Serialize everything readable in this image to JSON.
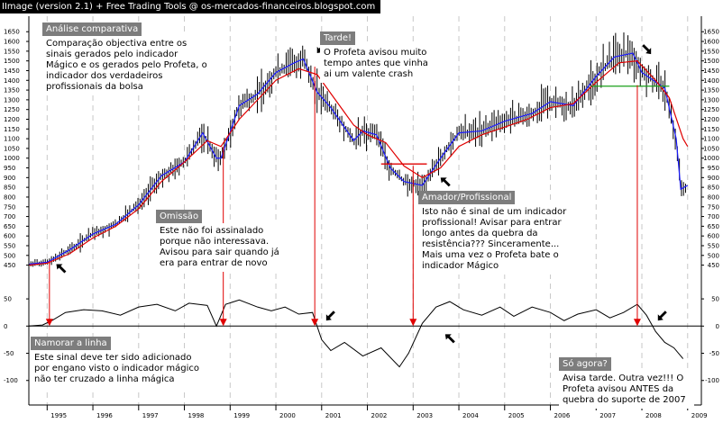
{
  "window_title": "IImage (version 2.1) + Free Trading Tools @ os-mercados-financeiros.blogspot.com",
  "chart_data": [
    {
      "type": "line",
      "panel": "price",
      "y_ticks": [
        450,
        500,
        550,
        600,
        650,
        700,
        750,
        800,
        850,
        900,
        950,
        1000,
        1050,
        1100,
        1150,
        1200,
        1250,
        1300,
        1350,
        1400,
        1450,
        1500,
        1550,
        1600,
        1650
      ],
      "ylim": [
        425,
        1665
      ],
      "x_labels": [
        "1995",
        "1996",
        "1997",
        "1998",
        "1999",
        "2000",
        "2001",
        "2002",
        "2003",
        "2004",
        "2005",
        "2006",
        "2007",
        "2008",
        "2009"
      ],
      "xlim": [
        1994.6,
        2009.3
      ],
      "grid": true,
      "series": [
        {
          "color": "#000000",
          "style": "bars",
          "x": [
            1994.6,
            1995.0,
            1995.5,
            1996.0,
            1996.5,
            1997.0,
            1997.5,
            1998.0,
            1998.4,
            1998.7,
            1998.8,
            1999.2,
            1999.6,
            2000.0,
            2000.4,
            2000.6,
            2000.9,
            2001.2,
            2001.7,
            2001.9,
            2002.2,
            2002.5,
            2002.8,
            2003.2,
            2003.6,
            2004.0,
            2004.5,
            2005.0,
            2005.6,
            2006.0,
            2006.5,
            2007.0,
            2007.4,
            2007.8,
            2008.0,
            2008.5,
            2008.75,
            2008.85,
            2009.0
          ],
          "values": [
            455,
            465,
            530,
            610,
            660,
            760,
            910,
            980,
            1130,
            1000,
            1000,
            1270,
            1330,
            1440,
            1490,
            1510,
            1340,
            1260,
            1090,
            1140,
            1120,
            950,
            880,
            860,
            1000,
            1130,
            1140,
            1190,
            1230,
            1290,
            1270,
            1420,
            1520,
            1540,
            1440,
            1360,
            1100,
            840,
            860
          ]
        },
        {
          "color": "#1a1aff",
          "style": "line",
          "x": [
            1994.6,
            1995.0,
            1995.5,
            1996.0,
            1996.5,
            1997.0,
            1997.5,
            1998.0,
            1998.4,
            1998.7,
            1998.8,
            1999.2,
            1999.6,
            2000.0,
            2000.4,
            2000.6,
            2000.9,
            2001.2,
            2001.7,
            2001.9,
            2002.2,
            2002.5,
            2002.8,
            2003.2,
            2003.6,
            2004.0,
            2004.5,
            2005.0,
            2005.6,
            2006.0,
            2006.5,
            2007.0,
            2007.4,
            2007.8,
            2008.0,
            2008.5,
            2008.75,
            2008.85,
            2009.0
          ],
          "values": [
            455,
            465,
            530,
            610,
            660,
            760,
            910,
            980,
            1130,
            1000,
            1000,
            1270,
            1330,
            1440,
            1490,
            1510,
            1340,
            1260,
            1090,
            1140,
            1120,
            950,
            880,
            860,
            1000,
            1130,
            1140,
            1190,
            1230,
            1290,
            1270,
            1420,
            1520,
            1540,
            1440,
            1360,
            1100,
            840,
            860
          ]
        },
        {
          "color": "#e00000",
          "style": "line",
          "x": [
            1994.6,
            1995.0,
            1995.5,
            1996.0,
            1996.5,
            1997.0,
            1997.5,
            1998.0,
            1998.5,
            1998.8,
            1999.2,
            1999.6,
            2000.0,
            2000.5,
            2000.9,
            2001.3,
            2001.7,
            2002.0,
            2002.4,
            2002.8,
            2003.2,
            2003.6,
            2004.0,
            2004.5,
            2005.0,
            2005.5,
            2006.0,
            2006.5,
            2007.0,
            2007.5,
            2007.9,
            2008.3,
            2008.6,
            2008.9,
            2009.0
          ],
          "values": [
            450,
            460,
            510,
            590,
            650,
            740,
            880,
            980,
            1090,
            1060,
            1200,
            1300,
            1400,
            1460,
            1430,
            1300,
            1170,
            1120,
            1080,
            960,
            900,
            950,
            1060,
            1120,
            1160,
            1200,
            1260,
            1280,
            1390,
            1490,
            1500,
            1400,
            1310,
            1100,
            1060
          ]
        }
      ],
      "annotations": [
        {
          "x1": 2002.3,
          "x2": 2003.3,
          "y": 970,
          "color": "#e00000"
        },
        {
          "x1": 2006.9,
          "x2": 2008.6,
          "y": 1370,
          "color": "#1aa01a"
        }
      ]
    },
    {
      "type": "line",
      "panel": "indicator",
      "y_ticks": [
        -100,
        -50,
        0,
        50
      ],
      "ylim": [
        -112,
        70
      ],
      "series": [
        {
          "color": "#000000",
          "x": [
            1994.6,
            1994.9,
            1995.1,
            1995.4,
            1995.8,
            1996.2,
            1996.6,
            1997.0,
            1997.4,
            1997.8,
            1998.1,
            1998.5,
            1998.7,
            1998.9,
            1999.2,
            1999.6,
            1999.9,
            2000.2,
            2000.5,
            2000.8,
            2001.0,
            2001.2,
            2001.5,
            2001.9,
            2002.3,
            2002.7,
            2002.9,
            2003.2,
            2003.5,
            2003.8,
            2004.1,
            2004.5,
            2004.9,
            2005.2,
            2005.6,
            2006.0,
            2006.3,
            2006.6,
            2007.0,
            2007.3,
            2007.6,
            2007.9,
            2008.1,
            2008.3,
            2008.5,
            2008.7,
            2008.9
          ],
          "values": [
            0,
            2,
            10,
            25,
            30,
            28,
            20,
            35,
            40,
            28,
            42,
            38,
            0,
            40,
            48,
            35,
            28,
            35,
            22,
            25,
            -25,
            -45,
            -30,
            -55,
            -40,
            -75,
            -50,
            5,
            35,
            45,
            30,
            20,
            35,
            18,
            35,
            25,
            10,
            22,
            30,
            15,
            25,
            40,
            20,
            -10,
            -30,
            -40,
            -60
          ]
        },
        {
          "color": "#000000",
          "x": [
            1994.6,
            2009.3
          ],
          "values": [
            0,
            0
          ]
        }
      ]
    }
  ],
  "markers": [
    {
      "x": 1995.2,
      "y": 455,
      "panel": "price",
      "dir": "up-left"
    },
    {
      "x": 2000.9,
      "y": 1540,
      "panel": "price",
      "dir": "down-left"
    },
    {
      "x": 2003.6,
      "y": 900,
      "panel": "price",
      "dir": "up-left"
    },
    {
      "x": 2008.2,
      "y": 1535,
      "panel": "price",
      "dir": "down-right"
    },
    {
      "x": 2001.1,
      "y": 10,
      "panel": "indicator",
      "dir": "down-left"
    },
    {
      "x": 2003.7,
      "y": -15,
      "panel": "indicator",
      "dir": "up-left"
    },
    {
      "x": 2008.35,
      "y": 10,
      "panel": "indicator",
      "dir": "down-left"
    }
  ],
  "signal_lines": [
    {
      "x": 1995.05,
      "from": 470,
      "to": 0
    },
    {
      "x": 1998.85,
      "from": 1060,
      "to": 0
    },
    {
      "x": 2000.85,
      "from": 1470,
      "to": 0
    },
    {
      "x": 2003.0,
      "from": 960,
      "to": 0
    },
    {
      "x": 2007.9,
      "from": 1375,
      "to": 0
    }
  ],
  "notes": [
    {
      "title": "Análise comparativa",
      "body": "Comparação objectiva entre os sinais gerados pelo indicador Mágico e os gerados pelo Profeta, o indicador dos verdadeiros profissionais da bolsa"
    },
    {
      "title": "Tarde!",
      "body": "O Profeta avisou muito tempo antes que vinha ai um valente crash"
    },
    {
      "title": "Omissão",
      "body": "Este não foi assinalado porque não interessava. Avisou para sair quando já era para entrar de novo"
    },
    {
      "title": "Amador/Profissional",
      "body": "Isto não é sinal de um indicador profissional! Avisar para entrar longo antes da quebra da resistência??? Sinceramente... Mais uma vez o Profeta bate o indicador Mágico"
    },
    {
      "title": "Namorar a linha",
      "body": "Este sinal deve ter sido adicionado por engano visto o indicador mágico não ter cruzado a linha mágica"
    },
    {
      "title": "Só agora?",
      "body": "Avisa tarde. Outra vez!!! O Profeta avisou ANTES da quebra do suporte de 2007"
    }
  ]
}
